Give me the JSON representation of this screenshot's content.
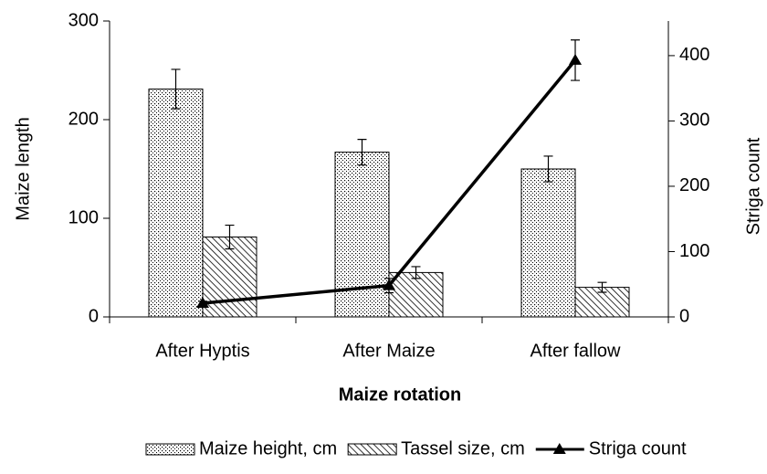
{
  "chart_data": {
    "type": "bar",
    "xlabel": "Maize rotation",
    "ylabel": "Maize length",
    "y2label": "Striga count",
    "categories": [
      "After Hyptis",
      "After Maize",
      "After fallow"
    ],
    "series": [
      {
        "name": "Maize height, cm",
        "type": "bar",
        "pattern": "dots",
        "color": "#000000",
        "values": [
          231,
          167,
          150
        ],
        "errors": [
          20,
          13,
          13
        ]
      },
      {
        "name": "Tassel size, cm",
        "type": "bar",
        "pattern": "hatch",
        "color": "#000000",
        "values": [
          81,
          45,
          30
        ],
        "errors": [
          12,
          6,
          5
        ]
      },
      {
        "name": "Striga count",
        "type": "line",
        "axis": "y2",
        "color": "#000000",
        "values": [
          21,
          48,
          393
        ],
        "errors": [
          3,
          11,
          31
        ]
      }
    ],
    "ylim": [
      0,
      300
    ],
    "yticks": [
      0,
      100,
      200,
      300
    ],
    "y2lim": [
      0,
      453
    ],
    "y2ticks": [
      0,
      100,
      200,
      300,
      400
    ],
    "legend": "bottom"
  }
}
